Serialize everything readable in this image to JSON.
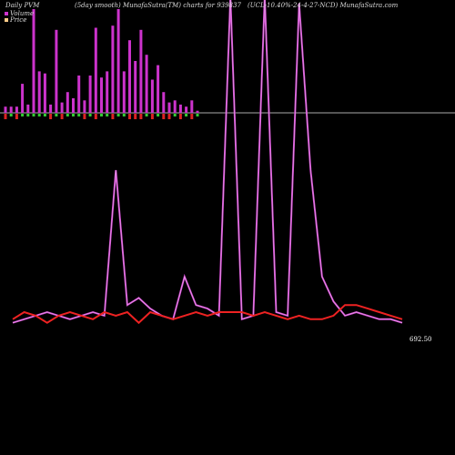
{
  "header": {
    "title": "Daily PVM",
    "subtitle": "(5day smooth) MunafaSutra(TM) charts for 939837",
    "symbol": "(UCL-10.40%-24-4-27-NCD) MunafaSutra.com"
  },
  "legend": [
    {
      "label": "Volume",
      "color": "#cc33cc"
    },
    {
      "label": "Price",
      "color": "#ffcc88"
    }
  ],
  "colors": {
    "background": "#000000",
    "volume_bar": "#cc33cc",
    "volume_up": "#33cc33",
    "volume_down": "#dd2222",
    "baseline": "#aaaaaa",
    "price_line": "#ee2222",
    "smooth_line": "#cc44cc"
  },
  "chart_data": {
    "type": "line",
    "title": "Daily PVM",
    "ylim": [
      0,
      100
    ],
    "volume_bars": [
      3,
      3,
      3,
      14,
      4,
      50,
      20,
      19,
      4,
      40,
      5,
      10,
      7,
      18,
      6,
      18,
      41,
      17,
      20,
      42,
      50,
      20,
      35,
      25,
      40,
      28,
      16,
      23,
      10,
      5,
      6,
      4,
      3,
      6,
      1
    ],
    "volume_signs": [
      -1,
      1,
      -1,
      1,
      1,
      1,
      1,
      1,
      -1,
      1,
      -1,
      1,
      1,
      1,
      -1,
      1,
      -1,
      1,
      1,
      -1,
      1,
      1,
      -1,
      -1,
      -1,
      1,
      -1,
      1,
      -1,
      -1,
      1,
      -1,
      1,
      -1,
      1
    ],
    "series": [
      {
        "id": "price",
        "values": [
          8,
          10,
          9,
          7,
          9,
          10,
          9,
          8,
          10,
          9,
          10,
          7,
          10,
          9,
          8,
          9,
          10,
          9,
          10,
          10,
          10,
          9,
          10,
          9,
          8,
          9,
          8,
          8,
          9,
          12,
          12,
          11,
          10,
          9,
          8
        ]
      },
      {
        "id": "smooth",
        "values": [
          7,
          8,
          9,
          10,
          9,
          8,
          9,
          10,
          9,
          50,
          12,
          14,
          11,
          9,
          8,
          20,
          12,
          11,
          9,
          99,
          8,
          9,
          99,
          10,
          9,
          97,
          50,
          20,
          13,
          9,
          10,
          9,
          8,
          8,
          7
        ]
      }
    ],
    "last_value_label": "692.50"
  }
}
